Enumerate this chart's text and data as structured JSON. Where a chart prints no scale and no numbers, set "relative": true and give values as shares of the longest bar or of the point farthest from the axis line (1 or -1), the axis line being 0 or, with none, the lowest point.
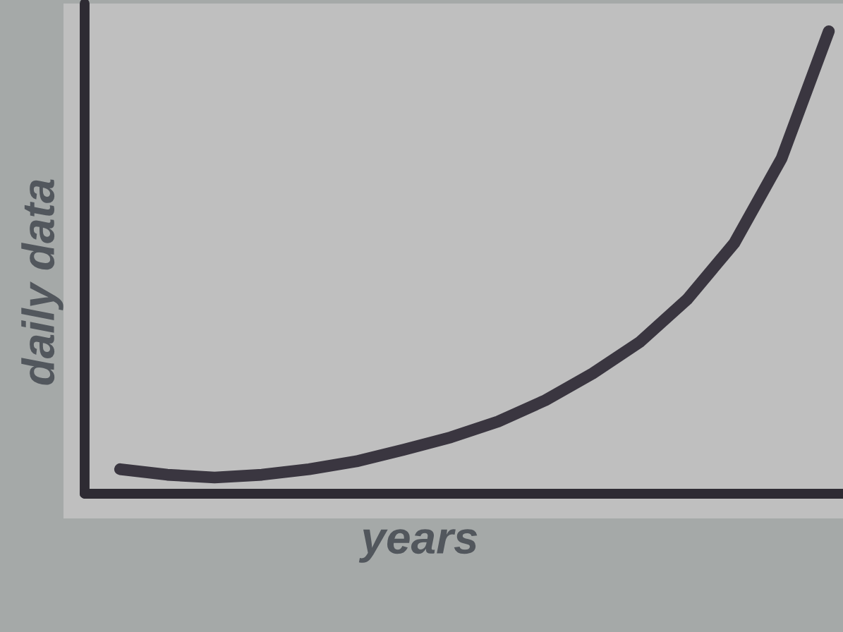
{
  "chart_data": {
    "type": "line",
    "relative": true,
    "xlabel": "years",
    "ylabel": "daily data",
    "categories": [
      null,
      null,
      null,
      null,
      null,
      null,
      null,
      null,
      null,
      null,
      null,
      null,
      null,
      null,
      null,
      null
    ],
    "series": [
      {
        "color": "#3a3640",
        "values": [
          0.053,
          0.041,
          0.035,
          0.041,
          0.053,
          0.07,
          0.095,
          0.122,
          0.156,
          0.202,
          0.26,
          0.328,
          0.42,
          0.542,
          0.725,
          1.0
        ]
      }
    ],
    "grid": false,
    "line_style": "solid"
  }
}
